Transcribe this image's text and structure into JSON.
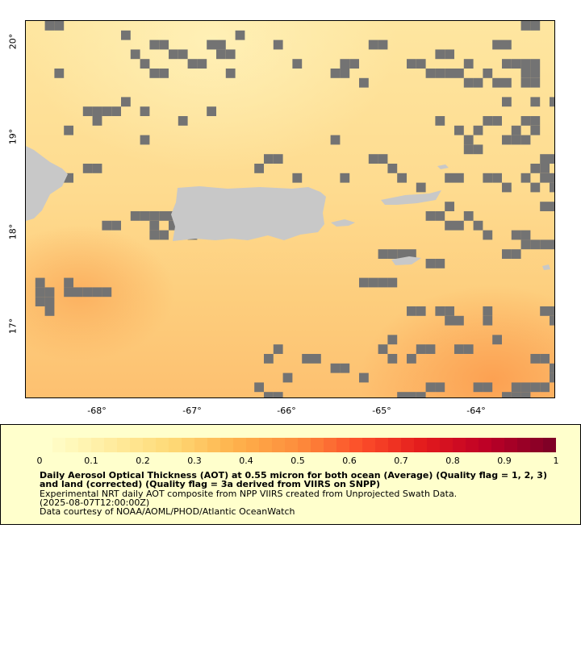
{
  "map": {
    "lat_labels": [
      "20°",
      "19°",
      "18°",
      "17°"
    ],
    "lon_labels": [
      "-68°",
      "-67°",
      "-66°",
      "-65°",
      "-64°"
    ],
    "colors": {
      "missing": "#737373",
      "land": "#c8c8c8",
      "frame": "#000000"
    }
  },
  "legend": {
    "ticks": [
      "0",
      "0.1",
      "0.2",
      "0.3",
      "0.4",
      "0.5",
      "0.6",
      "0.7",
      "0.8",
      "0.9",
      "1"
    ],
    "title": "Daily Aerosol Optical Thickness (AOT) at 0.55 micron for both ocean (Average) (Quality flag = 1, 2, 3) and land (corrected) (Quality flag = 3a derived from VIIRS on SNPP)",
    "line1": "Experimental NRT daily AOT composite from NPP VIIRS created from Unprojected Swath Data.",
    "line2": "(2025-08-07T12:00:00Z)",
    "line3": "Data courtesy of NOAA/AOML/PHOD/Atlantic OceanWatch",
    "background": "#ffffcc"
  }
}
